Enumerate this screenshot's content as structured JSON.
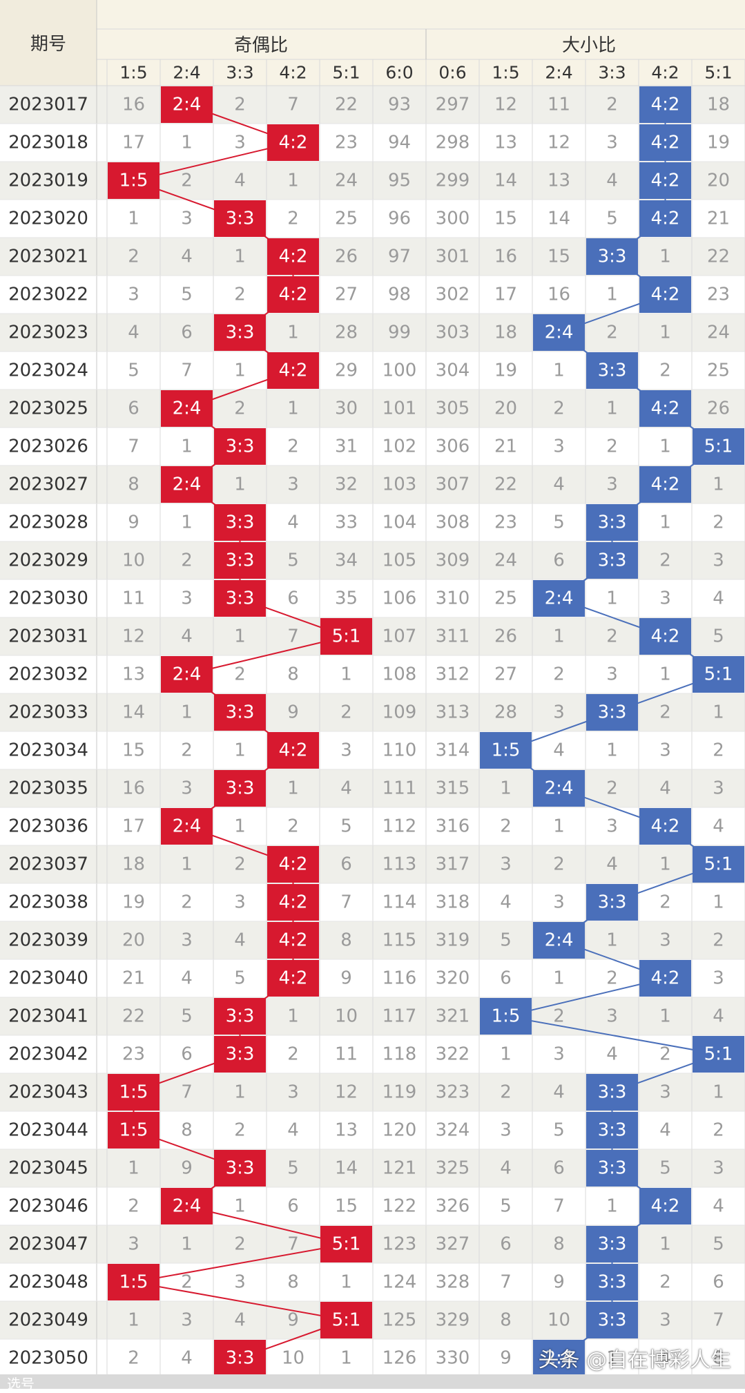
{
  "header": {
    "issue_label": "期号",
    "group_odd_even": "奇偶比",
    "group_big_small": "大小比"
  },
  "odd_even_columns": [
    "1:5",
    "2:4",
    "3:3",
    "4:2",
    "5:1",
    "6:0"
  ],
  "big_small_columns": [
    "0:6",
    "1:5",
    "2:4",
    "3:3",
    "4:2",
    "5:1"
  ],
  "colors": {
    "odd_even_hit": "#d7192f",
    "big_small_hit": "#4a6fba",
    "header_bg": "#f7f3e6",
    "row_alt": "#efefea",
    "row_plain": "#ffffff",
    "grid": "#d9d9d9"
  },
  "rows": [
    {
      "issue": "2023017",
      "oe": [
        "16",
        "2:4",
        "2",
        "7",
        "22",
        "93"
      ],
      "bs": [
        "297",
        "12",
        "11",
        "2",
        "4:2",
        "18"
      ]
    },
    {
      "issue": "2023018",
      "oe": [
        "17",
        "1",
        "3",
        "4:2",
        "23",
        "94"
      ],
      "bs": [
        "298",
        "13",
        "12",
        "3",
        "4:2",
        "19"
      ]
    },
    {
      "issue": "2023019",
      "oe": [
        "1:5",
        "2",
        "4",
        "1",
        "24",
        "95"
      ],
      "bs": [
        "299",
        "14",
        "13",
        "4",
        "4:2",
        "20"
      ]
    },
    {
      "issue": "2023020",
      "oe": [
        "1",
        "3",
        "3:3",
        "2",
        "25",
        "96"
      ],
      "bs": [
        "300",
        "15",
        "14",
        "5",
        "4:2",
        "21"
      ]
    },
    {
      "issue": "2023021",
      "oe": [
        "2",
        "4",
        "1",
        "4:2",
        "26",
        "97"
      ],
      "bs": [
        "301",
        "16",
        "15",
        "3:3",
        "1",
        "22"
      ]
    },
    {
      "issue": "2023022",
      "oe": [
        "3",
        "5",
        "2",
        "4:2",
        "27",
        "98"
      ],
      "bs": [
        "302",
        "17",
        "16",
        "1",
        "4:2",
        "23"
      ]
    },
    {
      "issue": "2023023",
      "oe": [
        "4",
        "6",
        "3:3",
        "1",
        "28",
        "99"
      ],
      "bs": [
        "303",
        "18",
        "2:4",
        "2",
        "1",
        "24"
      ]
    },
    {
      "issue": "2023024",
      "oe": [
        "5",
        "7",
        "1",
        "4:2",
        "29",
        "100"
      ],
      "bs": [
        "304",
        "19",
        "1",
        "3:3",
        "2",
        "25"
      ]
    },
    {
      "issue": "2023025",
      "oe": [
        "6",
        "2:4",
        "2",
        "1",
        "30",
        "101"
      ],
      "bs": [
        "305",
        "20",
        "2",
        "1",
        "4:2",
        "26"
      ]
    },
    {
      "issue": "2023026",
      "oe": [
        "7",
        "1",
        "3:3",
        "2",
        "31",
        "102"
      ],
      "bs": [
        "306",
        "21",
        "3",
        "2",
        "1",
        "5:1"
      ]
    },
    {
      "issue": "2023027",
      "oe": [
        "8",
        "2:4",
        "1",
        "3",
        "32",
        "103"
      ],
      "bs": [
        "307",
        "22",
        "4",
        "3",
        "4:2",
        "1"
      ]
    },
    {
      "issue": "2023028",
      "oe": [
        "9",
        "1",
        "3:3",
        "4",
        "33",
        "104"
      ],
      "bs": [
        "308",
        "23",
        "5",
        "3:3",
        "1",
        "2"
      ]
    },
    {
      "issue": "2023029",
      "oe": [
        "10",
        "2",
        "3:3",
        "5",
        "34",
        "105"
      ],
      "bs": [
        "309",
        "24",
        "6",
        "3:3",
        "2",
        "3"
      ]
    },
    {
      "issue": "2023030",
      "oe": [
        "11",
        "3",
        "3:3",
        "6",
        "35",
        "106"
      ],
      "bs": [
        "310",
        "25",
        "2:4",
        "1",
        "3",
        "4"
      ]
    },
    {
      "issue": "2023031",
      "oe": [
        "12",
        "4",
        "1",
        "7",
        "5:1",
        "107"
      ],
      "bs": [
        "311",
        "26",
        "1",
        "2",
        "4:2",
        "5"
      ]
    },
    {
      "issue": "2023032",
      "oe": [
        "13",
        "2:4",
        "2",
        "8",
        "1",
        "108"
      ],
      "bs": [
        "312",
        "27",
        "2",
        "3",
        "1",
        "5:1"
      ]
    },
    {
      "issue": "2023033",
      "oe": [
        "14",
        "1",
        "3:3",
        "9",
        "2",
        "109"
      ],
      "bs": [
        "313",
        "28",
        "3",
        "3:3",
        "2",
        "1"
      ]
    },
    {
      "issue": "2023034",
      "oe": [
        "15",
        "2",
        "1",
        "4:2",
        "3",
        "110"
      ],
      "bs": [
        "314",
        "1:5",
        "4",
        "1",
        "3",
        "2"
      ]
    },
    {
      "issue": "2023035",
      "oe": [
        "16",
        "3",
        "3:3",
        "1",
        "4",
        "111"
      ],
      "bs": [
        "315",
        "1",
        "2:4",
        "2",
        "4",
        "3"
      ]
    },
    {
      "issue": "2023036",
      "oe": [
        "17",
        "2:4",
        "1",
        "2",
        "5",
        "112"
      ],
      "bs": [
        "316",
        "2",
        "1",
        "3",
        "4:2",
        "4"
      ]
    },
    {
      "issue": "2023037",
      "oe": [
        "18",
        "1",
        "2",
        "4:2",
        "6",
        "113"
      ],
      "bs": [
        "317",
        "3",
        "2",
        "4",
        "1",
        "5:1"
      ]
    },
    {
      "issue": "2023038",
      "oe": [
        "19",
        "2",
        "3",
        "4:2",
        "7",
        "114"
      ],
      "bs": [
        "318",
        "4",
        "3",
        "3:3",
        "2",
        "1"
      ]
    },
    {
      "issue": "2023039",
      "oe": [
        "20",
        "3",
        "4",
        "4:2",
        "8",
        "115"
      ],
      "bs": [
        "319",
        "5",
        "2:4",
        "1",
        "3",
        "2"
      ]
    },
    {
      "issue": "2023040",
      "oe": [
        "21",
        "4",
        "5",
        "4:2",
        "9",
        "116"
      ],
      "bs": [
        "320",
        "6",
        "1",
        "2",
        "4:2",
        "3"
      ]
    },
    {
      "issue": "2023041",
      "oe": [
        "22",
        "5",
        "3:3",
        "1",
        "10",
        "117"
      ],
      "bs": [
        "321",
        "1:5",
        "2",
        "3",
        "1",
        "4"
      ]
    },
    {
      "issue": "2023042",
      "oe": [
        "23",
        "6",
        "3:3",
        "2",
        "11",
        "118"
      ],
      "bs": [
        "322",
        "1",
        "3",
        "4",
        "2",
        "5:1"
      ]
    },
    {
      "issue": "2023043",
      "oe": [
        "1:5",
        "7",
        "1",
        "3",
        "12",
        "119"
      ],
      "bs": [
        "323",
        "2",
        "4",
        "3:3",
        "3",
        "1"
      ]
    },
    {
      "issue": "2023044",
      "oe": [
        "1:5",
        "8",
        "2",
        "4",
        "13",
        "120"
      ],
      "bs": [
        "324",
        "3",
        "5",
        "3:3",
        "4",
        "2"
      ]
    },
    {
      "issue": "2023045",
      "oe": [
        "1",
        "9",
        "3:3",
        "5",
        "14",
        "121"
      ],
      "bs": [
        "325",
        "4",
        "6",
        "3:3",
        "5",
        "3"
      ]
    },
    {
      "issue": "2023046",
      "oe": [
        "2",
        "2:4",
        "1",
        "6",
        "15",
        "122"
      ],
      "bs": [
        "326",
        "5",
        "7",
        "1",
        "4:2",
        "4"
      ]
    },
    {
      "issue": "2023047",
      "oe": [
        "3",
        "1",
        "2",
        "7",
        "5:1",
        "123"
      ],
      "bs": [
        "327",
        "6",
        "8",
        "3:3",
        "1",
        "5"
      ]
    },
    {
      "issue": "2023048",
      "oe": [
        "1:5",
        "2",
        "3",
        "8",
        "1",
        "124"
      ],
      "bs": [
        "328",
        "7",
        "9",
        "3:3",
        "2",
        "6"
      ]
    },
    {
      "issue": "2023049",
      "oe": [
        "1",
        "3",
        "4",
        "9",
        "5:1",
        "125"
      ],
      "bs": [
        "329",
        "8",
        "10",
        "3:3",
        "3",
        "7"
      ]
    },
    {
      "issue": "2023050",
      "oe": [
        "2",
        "4",
        "3:3",
        "10",
        "1",
        "126"
      ],
      "bs": [
        "330",
        "9",
        "2:4",
        "1",
        "4",
        "8"
      ]
    }
  ],
  "watermark": "头条 @自在博彩人生",
  "footer_hint": "选号"
}
